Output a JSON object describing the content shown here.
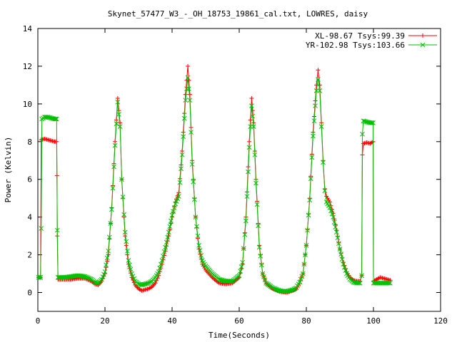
{
  "chart_data": {
    "type": "line",
    "title": "Skynet_57477_W3_-_OH_18753_19861_cal.txt, LOWRES, daisy",
    "xlabel": "Time(Seconds)",
    "ylabel": "Power (Kelvin)",
    "xlim": [
      0,
      120
    ],
    "ylim": [
      -1,
      14
    ],
    "xticks": [
      0,
      20,
      40,
      60,
      80,
      100,
      120
    ],
    "yticks": [
      0,
      2,
      4,
      6,
      8,
      10,
      12,
      14
    ],
    "grid": false,
    "legend_position": "top-right",
    "series": [
      {
        "name": "XL-98.67 Tsys:99.39",
        "color": "#ff0000",
        "marker": "plus",
        "points": [
          [
            0.2,
            0.8
          ],
          [
            0.8,
            0.8
          ],
          [
            1.0,
            8.1
          ],
          [
            2.0,
            8.15
          ],
          [
            3.0,
            8.1
          ],
          [
            4.0,
            8.05
          ],
          [
            5.0,
            8.0
          ],
          [
            5.6,
            8.0
          ],
          [
            5.7,
            6.2
          ],
          [
            5.8,
            3.0
          ],
          [
            6.0,
            0.7
          ],
          [
            8,
            0.7
          ],
          [
            10,
            0.7
          ],
          [
            12,
            0.75
          ],
          [
            14,
            0.75
          ],
          [
            16,
            0.6
          ],
          [
            17,
            0.45
          ],
          [
            18,
            0.4
          ],
          [
            19,
            0.6
          ],
          [
            20,
            1.0
          ],
          [
            21,
            2.0
          ],
          [
            22,
            4.5
          ],
          [
            23,
            8.0
          ],
          [
            23.8,
            10.3
          ],
          [
            24.5,
            9.0
          ],
          [
            25,
            6.0
          ],
          [
            26,
            3.0
          ],
          [
            27,
            1.5
          ],
          [
            28,
            0.8
          ],
          [
            29,
            0.4
          ],
          [
            30,
            0.2
          ],
          [
            31,
            0.1
          ],
          [
            32,
            0.15
          ],
          [
            33,
            0.2
          ],
          [
            34,
            0.3
          ],
          [
            35,
            0.5
          ],
          [
            36,
            0.9
          ],
          [
            37,
            1.5
          ],
          [
            38,
            2.2
          ],
          [
            39,
            3.0
          ],
          [
            40,
            4.0
          ],
          [
            41,
            4.8
          ],
          [
            42,
            5.3
          ],
          [
            43,
            7.5
          ],
          [
            44,
            10.5
          ],
          [
            44.7,
            12.0
          ],
          [
            45.3,
            10.5
          ],
          [
            46,
            7.0
          ],
          [
            47,
            4.0
          ],
          [
            48,
            2.3
          ],
          [
            49,
            1.5
          ],
          [
            50,
            1.2
          ],
          [
            52,
            0.8
          ],
          [
            54,
            0.5
          ],
          [
            56,
            0.45
          ],
          [
            58,
            0.5
          ],
          [
            60,
            0.8
          ],
          [
            61,
            1.5
          ],
          [
            62,
            4.0
          ],
          [
            63,
            8.0
          ],
          [
            63.7,
            10.3
          ],
          [
            64.3,
            9.0
          ],
          [
            65,
            6.0
          ],
          [
            66,
            2.5
          ],
          [
            67,
            1.0
          ],
          [
            68,
            0.5
          ],
          [
            70,
            0.2
          ],
          [
            72,
            0.05
          ],
          [
            74,
            0.0
          ],
          [
            76,
            0.1
          ],
          [
            77,
            0.2
          ],
          [
            78,
            0.5
          ],
          [
            79,
            1.0
          ],
          [
            80,
            2.5
          ],
          [
            81,
            5.0
          ],
          [
            82,
            8.5
          ],
          [
            83,
            11.0
          ],
          [
            83.5,
            11.8
          ],
          [
            84,
            11.0
          ],
          [
            84.5,
            9.0
          ],
          [
            85,
            7.0
          ],
          [
            85.5,
            5.5
          ],
          [
            86,
            5.1
          ],
          [
            87,
            4.8
          ],
          [
            88,
            4.2
          ],
          [
            89,
            3.3
          ],
          [
            90,
            2.3
          ],
          [
            91,
            1.6
          ],
          [
            92,
            1.1
          ],
          [
            93,
            0.8
          ],
          [
            94,
            0.65
          ],
          [
            95,
            0.6
          ],
          [
            96,
            0.6
          ],
          [
            96.5,
            0.9
          ],
          [
            96.7,
            7.3
          ],
          [
            97,
            7.9
          ],
          [
            98,
            7.95
          ],
          [
            99,
            7.9
          ],
          [
            99.9,
            8.0
          ],
          [
            100,
            0.6
          ],
          [
            101,
            0.7
          ],
          [
            102,
            0.8
          ],
          [
            103,
            0.75
          ],
          [
            104,
            0.7
          ],
          [
            105,
            0.65
          ]
        ]
      },
      {
        "name": "YR-102.98 Tsys:103.66",
        "color": "#00c000",
        "marker": "cross",
        "points": [
          [
            0.2,
            0.8
          ],
          [
            0.8,
            0.8
          ],
          [
            1.0,
            3.4
          ],
          [
            1.2,
            9.2
          ],
          [
            2.0,
            9.3
          ],
          [
            3.0,
            9.3
          ],
          [
            4.0,
            9.25
          ],
          [
            5.0,
            9.2
          ],
          [
            5.6,
            9.2
          ],
          [
            5.8,
            3.3
          ],
          [
            6.0,
            0.8
          ],
          [
            8,
            0.8
          ],
          [
            10,
            0.85
          ],
          [
            12,
            0.9
          ],
          [
            14,
            0.85
          ],
          [
            16,
            0.7
          ],
          [
            17,
            0.55
          ],
          [
            18,
            0.5
          ],
          [
            19,
            0.7
          ],
          [
            20,
            1.1
          ],
          [
            21,
            2.2
          ],
          [
            22,
            4.4
          ],
          [
            23,
            7.8
          ],
          [
            23.8,
            10.1
          ],
          [
            24.5,
            8.8
          ],
          [
            25,
            6.0
          ],
          [
            26,
            3.2
          ],
          [
            27,
            1.7
          ],
          [
            28,
            1.0
          ],
          [
            29,
            0.6
          ],
          [
            30,
            0.45
          ],
          [
            31,
            0.4
          ],
          [
            32,
            0.45
          ],
          [
            33,
            0.5
          ],
          [
            34,
            0.6
          ],
          [
            35,
            0.8
          ],
          [
            36,
            1.1
          ],
          [
            37,
            1.7
          ],
          [
            38,
            2.4
          ],
          [
            39,
            3.2
          ],
          [
            40,
            4.1
          ],
          [
            41,
            4.7
          ],
          [
            42,
            5.1
          ],
          [
            43,
            7.3
          ],
          [
            44,
            10.2
          ],
          [
            44.7,
            11.4
          ],
          [
            45.3,
            10.2
          ],
          [
            46,
            6.8
          ],
          [
            47,
            4.0
          ],
          [
            48,
            2.5
          ],
          [
            49,
            1.7
          ],
          [
            50,
            1.4
          ],
          [
            52,
            1.0
          ],
          [
            54,
            0.7
          ],
          [
            56,
            0.6
          ],
          [
            58,
            0.6
          ],
          [
            60,
            0.9
          ],
          [
            61,
            1.6
          ],
          [
            62,
            3.8
          ],
          [
            63,
            7.7
          ],
          [
            63.7,
            9.9
          ],
          [
            64.3,
            8.8
          ],
          [
            65,
            5.8
          ],
          [
            66,
            2.4
          ],
          [
            67,
            1.0
          ],
          [
            68,
            0.5
          ],
          [
            70,
            0.25
          ],
          [
            72,
            0.1
          ],
          [
            74,
            0.05
          ],
          [
            76,
            0.15
          ],
          [
            77,
            0.25
          ],
          [
            78,
            0.55
          ],
          [
            79,
            1.0
          ],
          [
            80,
            2.5
          ],
          [
            81,
            4.9
          ],
          [
            82,
            8.3
          ],
          [
            83,
            10.7
          ],
          [
            83.5,
            11.3
          ],
          [
            84,
            10.7
          ],
          [
            84.5,
            8.8
          ],
          [
            85,
            6.9
          ],
          [
            85.5,
            5.4
          ],
          [
            86,
            4.8
          ],
          [
            87,
            4.5
          ],
          [
            88,
            4.0
          ],
          [
            89,
            3.2
          ],
          [
            90,
            2.3
          ],
          [
            91,
            1.5
          ],
          [
            92,
            1.0
          ],
          [
            93,
            0.7
          ],
          [
            94,
            0.55
          ],
          [
            95,
            0.5
          ],
          [
            96,
            0.5
          ],
          [
            96.5,
            0.9
          ],
          [
            96.7,
            8.4
          ],
          [
            97,
            9.1
          ],
          [
            98,
            9.05
          ],
          [
            99,
            9.0
          ],
          [
            99.9,
            9.0
          ],
          [
            100,
            0.5
          ],
          [
            101,
            0.5
          ],
          [
            102,
            0.5
          ],
          [
            103,
            0.5
          ],
          [
            104,
            0.5
          ],
          [
            105,
            0.5
          ]
        ]
      }
    ]
  }
}
